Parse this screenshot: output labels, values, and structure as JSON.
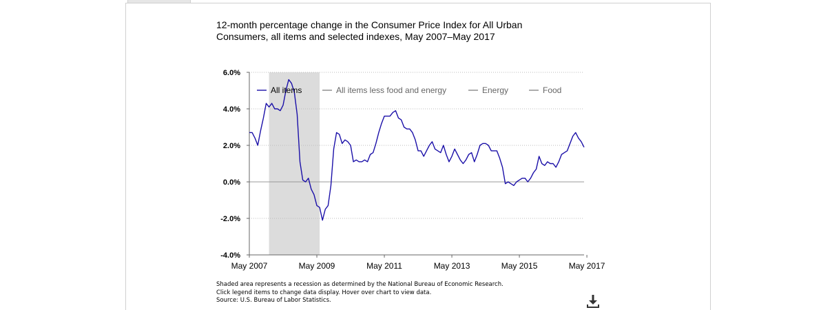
{
  "chart_data": {
    "type": "line",
    "title": "12-month percentage change in the Consumer Price Index for All Urban Consumers, all items and selected indexes, May 2007–May 2017",
    "ylim": [
      -4.0,
      6.0
    ],
    "y_ticks": [
      "6.0%",
      "4.0%",
      "2.0%",
      "0.0%",
      "-2.0%",
      "-4.0%"
    ],
    "y_tick_values": [
      6,
      4,
      2,
      0,
      -2,
      -4
    ],
    "x_ticks": [
      "May 2007",
      "May 2009",
      "May 2011",
      "May 2013",
      "May 2015",
      "May 2017"
    ],
    "x_start": "May 2007",
    "x_end": "May 2017",
    "recession": {
      "start": "Dec 2007",
      "end": "Jun 2009"
    },
    "legend": [
      {
        "name": "All items",
        "color": "#1a0fa8",
        "active": true
      },
      {
        "name": "All items less food and energy",
        "color": "#999999",
        "active": false
      },
      {
        "name": "Energy",
        "color": "#999999",
        "active": false
      },
      {
        "name": "Food",
        "color": "#999999",
        "active": false
      }
    ],
    "series": [
      {
        "name": "All items",
        "color": "#1a0fa8",
        "values": [
          2.7,
          2.7,
          2.4,
          2.0,
          2.8,
          3.5,
          4.3,
          4.1,
          4.3,
          4.0,
          4.0,
          3.9,
          4.2,
          5.0,
          5.6,
          5.4,
          4.9,
          3.7,
          1.1,
          0.1,
          0.0,
          0.2,
          -0.4,
          -0.7,
          -1.3,
          -1.4,
          -2.1,
          -1.5,
          -1.3,
          -0.2,
          1.8,
          2.7,
          2.6,
          2.1,
          2.3,
          2.2,
          2.0,
          1.1,
          1.2,
          1.1,
          1.1,
          1.2,
          1.1,
          1.5,
          1.6,
          2.1,
          2.7,
          3.2,
          3.6,
          3.6,
          3.6,
          3.8,
          3.9,
          3.5,
          3.4,
          3.0,
          2.9,
          2.9,
          2.7,
          2.3,
          1.7,
          1.7,
          1.4,
          1.7,
          2.0,
          2.2,
          1.8,
          1.7,
          1.6,
          2.0,
          1.5,
          1.1,
          1.4,
          1.8,
          1.5,
          1.2,
          1.0,
          1.2,
          1.5,
          1.6,
          1.1,
          1.5,
          2.0,
          2.1,
          2.1,
          2.0,
          1.7,
          1.7,
          1.7,
          1.3,
          0.8,
          -0.1,
          0.0,
          -0.1,
          -0.2,
          0.0,
          0.1,
          0.2,
          0.2,
          0.0,
          0.2,
          0.5,
          0.7,
          1.4,
          1.0,
          0.9,
          1.1,
          1.0,
          1.0,
          0.8,
          1.1,
          1.5,
          1.6,
          1.7,
          2.1,
          2.5,
          2.7,
          2.4,
          2.2,
          1.9
        ]
      }
    ],
    "notes": [
      "Shaded area represents a recession as determined by the National Bureau of Economic Research.",
      "Click legend items to change data display. Hover over chart to view data.",
      "Source: U.S. Bureau of Labor Statistics."
    ]
  },
  "icons": {
    "download": "download-icon"
  }
}
